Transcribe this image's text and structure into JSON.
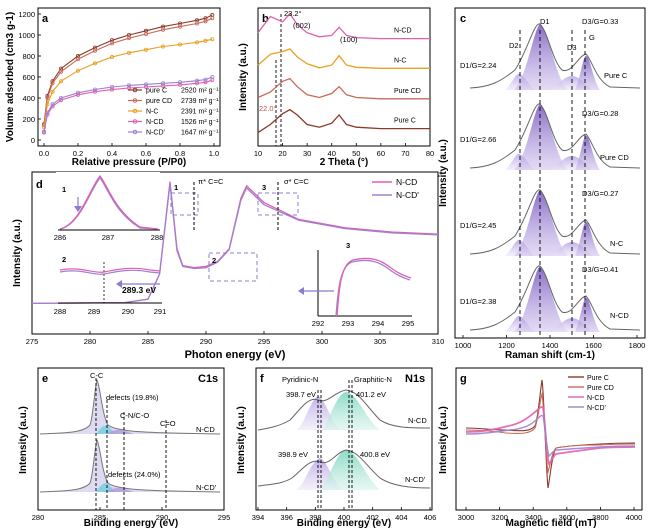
{
  "panels": {
    "a": "a",
    "b": "b",
    "c": "c",
    "d": "d",
    "e": "e",
    "f": "f",
    "g": "g"
  },
  "chart_data": [
    {
      "id": "a",
      "type": "line",
      "xlabel": "Relative pressure (P/P0)",
      "ylabel": "Volume adsorbed (cm3 g-1)",
      "xlim": [
        0,
        1
      ],
      "ylim": [
        0,
        1200
      ],
      "xticks": [
        "0.0",
        "0.2",
        "0.4",
        "0.6",
        "0.8",
        "1.0"
      ],
      "yticks": [
        "0",
        "200",
        "400",
        "600",
        "800",
        "1000",
        "1200"
      ],
      "legend_position": "top-right",
      "series": [
        {
          "name": "pure C",
          "area": "2520 m² g⁻¹",
          "color": "#8b3a2a",
          "x": [
            0,
            0.02,
            0.05,
            0.1,
            0.2,
            0.3,
            0.4,
            0.5,
            0.6,
            0.7,
            0.8,
            0.9,
            0.95,
            0.99
          ],
          "values": [
            150,
            420,
            560,
            680,
            800,
            880,
            950,
            1000,
            1040,
            1080,
            1110,
            1140,
            1160,
            1190
          ]
        },
        {
          "name": "pure CD",
          "area": "2739 m² g⁻¹",
          "color": "#c86a5a",
          "x": [
            0,
            0.02,
            0.05,
            0.1,
            0.2,
            0.3,
            0.4,
            0.5,
            0.6,
            0.7,
            0.8,
            0.9,
            0.95,
            0.99
          ],
          "values": [
            140,
            400,
            540,
            650,
            770,
            850,
            920,
            970,
            1010,
            1050,
            1080,
            1110,
            1130,
            1160
          ]
        },
        {
          "name": "N-C",
          "area": "2391 m² g⁻¹",
          "color": "#e8a020",
          "x": [
            0,
            0.02,
            0.05,
            0.1,
            0.2,
            0.3,
            0.4,
            0.5,
            0.6,
            0.7,
            0.8,
            0.9,
            0.95,
            0.99
          ],
          "values": [
            120,
            340,
            460,
            560,
            660,
            730,
            790,
            830,
            860,
            890,
            910,
            930,
            945,
            960
          ]
        },
        {
          "name": "N-CD",
          "area": "1526 m² g⁻¹",
          "color": "#e060b0",
          "x": [
            0,
            0.02,
            0.05,
            0.1,
            0.2,
            0.3,
            0.4,
            0.5,
            0.6,
            0.7,
            0.8,
            0.9,
            0.95,
            0.99
          ],
          "values": [
            80,
            240,
            320,
            380,
            430,
            460,
            480,
            495,
            505,
            515,
            525,
            540,
            550,
            570
          ]
        },
        {
          "name": "N-CD'",
          "area": "1647 m² g⁻¹",
          "color": "#a080d0",
          "x": [
            0,
            0.02,
            0.05,
            0.1,
            0.2,
            0.3,
            0.4,
            0.5,
            0.6,
            0.7,
            0.8,
            0.9,
            0.95,
            0.99
          ],
          "values": [
            70,
            260,
            340,
            400,
            450,
            480,
            505,
            520,
            530,
            540,
            550,
            565,
            575,
            600
          ]
        }
      ]
    },
    {
      "id": "b",
      "type": "line",
      "xlabel": "2 Theta (°)",
      "ylabel": "Intensity (a.u.)",
      "xlim": [
        10,
        80
      ],
      "xticks": [
        "10",
        "20",
        "30",
        "40",
        "50",
        "60",
        "70",
        "80"
      ],
      "annotations": [
        "23.2°",
        "(002)",
        "(100)",
        "22.0°"
      ],
      "series": [
        {
          "name": "N-CD",
          "color": "#e060b0",
          "x": [
            10,
            15,
            20,
            23,
            26,
            30,
            35,
            40,
            43,
            46,
            50,
            60,
            70,
            80
          ],
          "values": [
            3.9,
            4.5,
            4.3,
            4.6,
            4.2,
            3.9,
            3.75,
            3.8,
            4.1,
            3.8,
            3.72,
            3.68,
            3.68,
            3.68
          ]
        },
        {
          "name": "N-C",
          "color": "#e8a020",
          "x": [
            10,
            15,
            20,
            23,
            26,
            30,
            35,
            40,
            43,
            46,
            50,
            60,
            70,
            80
          ],
          "values": [
            2.7,
            3.1,
            3.2,
            3.3,
            3.0,
            2.75,
            2.6,
            2.7,
            3.05,
            2.7,
            2.62,
            2.58,
            2.58,
            2.58
          ]
        },
        {
          "name": "Pure CD",
          "color": "#c86a5a",
          "x": [
            10,
            15,
            20,
            23,
            26,
            30,
            35,
            40,
            43,
            46,
            50,
            60,
            70,
            80
          ],
          "values": [
            1.5,
            1.7,
            2.1,
            2.2,
            1.9,
            1.6,
            1.5,
            1.65,
            1.9,
            1.6,
            1.5,
            1.45,
            1.45,
            1.45
          ]
        },
        {
          "name": "Pure C",
          "color": "#8b3a2a",
          "x": [
            10,
            15,
            20,
            23,
            26,
            30,
            35,
            40,
            43,
            46,
            50,
            60,
            70,
            80
          ],
          "values": [
            0.2,
            0.5,
            0.9,
            1.05,
            0.85,
            0.5,
            0.4,
            0.55,
            0.85,
            0.5,
            0.4,
            0.35,
            0.35,
            0.35
          ]
        }
      ]
    },
    {
      "id": "c",
      "type": "line",
      "xlabel": "Raman shift (cm-1)",
      "ylabel": "Intensity (a.u.)",
      "xlim": [
        1000,
        1800
      ],
      "xticks": [
        "1000",
        "1200",
        "1400",
        "1600",
        "1800"
      ],
      "peak_labels": [
        "D2",
        "D1",
        "D3",
        "G"
      ],
      "ratios": [
        {
          "sample": "Pure C",
          "d1g": "D1/G=2.24",
          "d3g": "D3/G=0.33"
        },
        {
          "sample": "Pure CD",
          "d1g": "D1/G=2.66",
          "d3g": "D3/G=0.28"
        },
        {
          "sample": "N-C",
          "d1g": "D1/G=2.45",
          "d3g": "D3/G=0.27"
        },
        {
          "sample": "N-CD",
          "d1g": "D1/G=2.38",
          "d3g": "D3/G=0.41"
        }
      ]
    },
    {
      "id": "d",
      "type": "line",
      "xlabel": "Photon energy (eV)",
      "ylabel": "Intensity (a.u.)",
      "xlim": [
        275,
        310
      ],
      "xticks": [
        "275",
        "280",
        "285",
        "290",
        "295",
        "300",
        "305",
        "310"
      ],
      "annotations": [
        "π* C=C",
        "σ* C=C",
        "289.3 eV"
      ],
      "inset_labels": [
        "1",
        "2",
        "3"
      ],
      "inset1_xticks": [
        "286",
        "287",
        "288"
      ],
      "inset2_xticks": [
        "288",
        "289",
        "290",
        "291"
      ],
      "inset3_xticks": [
        "292",
        "293",
        "294",
        "295"
      ],
      "series": [
        {
          "name": "N-CD",
          "color": "#e060b0",
          "x": [
            275,
            283,
            285,
            286,
            286.9,
            287.5,
            288,
            289,
            290,
            291,
            292,
            293,
            293.5,
            295,
            298,
            302,
            306,
            310
          ],
          "values": [
            0.3,
            0.32,
            0.4,
            1.0,
            3.2,
            1.6,
            1.2,
            1.15,
            1.18,
            1.3,
            1.6,
            2.8,
            3.1,
            2.7,
            2.3,
            2.1,
            2.0,
            1.95
          ]
        },
        {
          "name": "N-CD'",
          "color": "#a080d0",
          "x": [
            275,
            283,
            285,
            286,
            286.9,
            287.5,
            288,
            289,
            290,
            291,
            292,
            293,
            293.5,
            295,
            298,
            302,
            306,
            310
          ],
          "values": [
            0.3,
            0.32,
            0.4,
            1.0,
            3.15,
            1.55,
            1.18,
            1.13,
            1.15,
            1.28,
            1.58,
            2.75,
            3.05,
            2.65,
            2.28,
            2.08,
            1.98,
            1.93
          ]
        }
      ]
    },
    {
      "id": "e",
      "type": "line",
      "title": "C1s",
      "xlabel": "Binding energy (eV)",
      "ylabel": "Intensity (a.u.)",
      "xlim": [
        280,
        295
      ],
      "xticks": [
        "280",
        "285",
        "290",
        "295"
      ],
      "annotations": [
        "C-C",
        "defects (19.8%)",
        "C-N/C-O",
        "C=O",
        "defects (24.0%)"
      ],
      "sample_labels": [
        "N-CD",
        "N-CD'"
      ]
    },
    {
      "id": "f",
      "type": "line",
      "title": "N1s",
      "xlabel": "Binding energy (eV)",
      "ylabel": "Intensity (a.u.)",
      "xlim": [
        394,
        406
      ],
      "xticks": [
        "394",
        "396",
        "398",
        "400",
        "402",
        "404",
        "406"
      ],
      "annotations": [
        "Pyridinic-N",
        "Graphitic-N",
        "398.7 eV",
        "401.2 eV",
        "398.9 eV",
        "400.8 eV"
      ],
      "sample_labels": [
        "N-CD",
        "N-CD'"
      ]
    },
    {
      "id": "g",
      "type": "line",
      "xlabel": "Magnetic field (mT)",
      "ylabel": "Intensity (a.u.)",
      "xlim": [
        3000,
        4000
      ],
      "xticks": [
        "3000",
        "3200",
        "3400",
        "3600",
        "3800",
        "4000"
      ],
      "legend_position": "top-right",
      "series": [
        {
          "name": "Pure C",
          "color": "#8b3a2a"
        },
        {
          "name": "Pure CD",
          "color": "#c86a5a"
        },
        {
          "name": "N-CD",
          "color": "#e060b0"
        },
        {
          "name": "N-CD'",
          "color": "#a080d0"
        }
      ]
    }
  ]
}
